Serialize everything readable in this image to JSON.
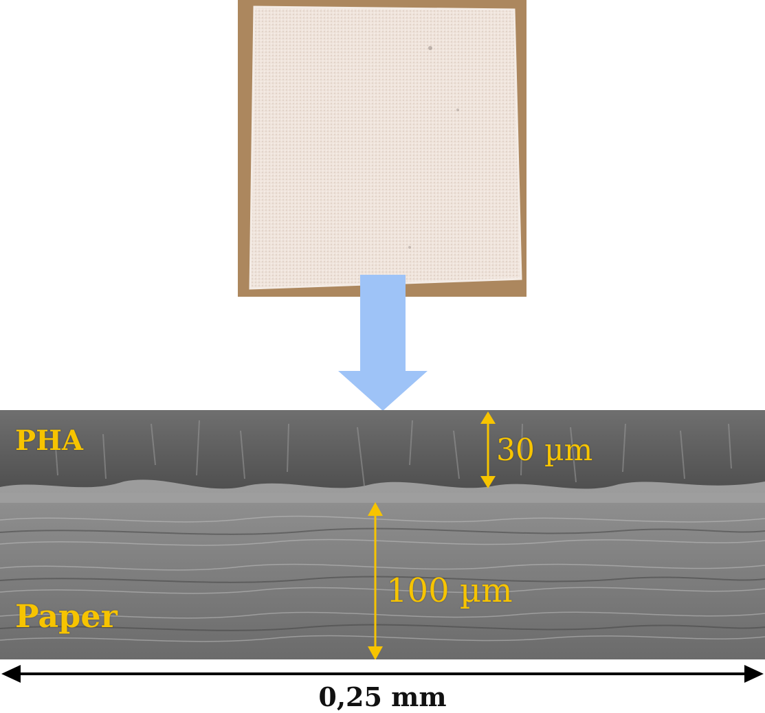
{
  "figure": {
    "top_image": "photo of PHA-coated paper sample",
    "bottom_image": "SEM cross-section micrograph",
    "flow_arrow_color": "#9ec3f7",
    "label_color": "#f7c400",
    "layers": {
      "top_label": "PHA",
      "bottom_label": "Paper"
    },
    "measurements": {
      "pha_thickness": "30 µm",
      "paper_thickness": "100 µm"
    },
    "scale_bar": {
      "label": "0,25 mm"
    }
  }
}
